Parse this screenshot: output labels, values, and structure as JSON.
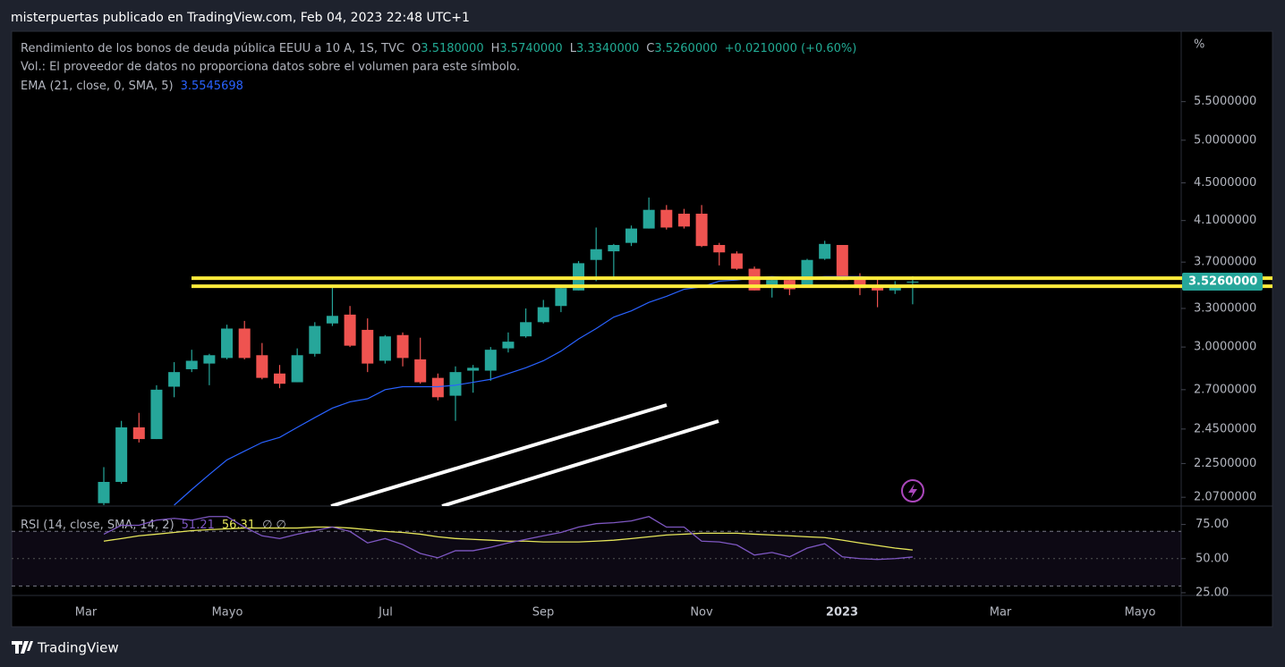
{
  "header": {
    "title": "misterpuertas publicado en TradingView.com, Feb 04, 2023 22:48 UTC+1"
  },
  "legend": {
    "symbol": "Rendimiento de los bonos de deuda pública EEUU a 10 A, 1S, TVC",
    "open_key": "O",
    "open": "3.5180000",
    "high_key": "H",
    "high": "3.5740000",
    "low_key": "L",
    "low": "3.3340000",
    "close_key": "C",
    "close": "3.5260000",
    "change": "+0.0210000 (+0.60%)",
    "volume_note": "Vol.: El proveedor de datos no proporciona datos sobre el volumen para este símbolo.",
    "ema_name": "EMA (21, close, 0, SMA, 5)",
    "ema_value": "3.5545698",
    "rsi_name": "RSI (14, close, SMA, 14, 2)",
    "rsi_value": "51.21",
    "rsi_sma_value": "56.31",
    "rsi_extra": "∅ ∅"
  },
  "chart_data": [
    {
      "type": "candlestick",
      "log_scale": true,
      "y_unit_label": "%",
      "ylim": [
        2.03,
        6.5
      ],
      "yticks": [
        {
          "value": 5.5,
          "label": "5.5000000"
        },
        {
          "value": 5.0,
          "label": "5.0000000"
        },
        {
          "value": 4.5,
          "label": "4.5000000"
        },
        {
          "value": 4.1,
          "label": "4.1000000"
        },
        {
          "value": 3.7,
          "label": "3.7000000"
        },
        {
          "value": 3.3,
          "label": "3.3000000"
        },
        {
          "value": 3.0,
          "label": "3.0000000"
        },
        {
          "value": 2.7,
          "label": "2.7000000"
        },
        {
          "value": 2.45,
          "label": "2.4500000"
        },
        {
          "value": 2.25,
          "label": "2.2500000"
        },
        {
          "value": 2.07,
          "label": "2.0700000"
        }
      ],
      "categories": [
        null,
        null,
        null,
        null,
        null,
        null,
        null,
        null,
        null,
        null,
        null,
        null,
        null,
        null,
        null,
        null,
        null,
        null,
        null,
        null,
        null,
        null,
        null,
        null,
        null,
        null,
        null,
        null,
        null,
        null,
        null,
        null,
        null,
        null,
        null,
        null,
        null,
        null,
        null,
        null,
        null,
        null,
        null,
        null,
        null,
        null,
        null
      ],
      "up_color": "#26a69a",
      "down_color": "#ef5350",
      "series": [
        {
          "open": [
            2.04,
            2.15,
            2.46,
            2.39,
            2.72,
            2.84,
            2.88,
            2.92,
            3.14,
            2.94,
            2.81,
            2.75,
            2.95,
            3.18,
            3.25,
            3.13,
            2.9,
            3.09,
            2.91,
            2.78,
            2.66,
            2.83,
            2.83,
            2.99,
            3.08,
            3.19,
            3.32,
            3.45,
            3.72,
            3.8,
            3.88,
            4.02,
            4.21,
            4.17,
            4.17,
            3.86,
            3.78,
            3.64,
            3.49,
            3.54,
            3.48,
            3.73,
            3.86,
            3.55,
            3.48,
            3.45,
            3.518
          ],
          "high": [
            2.23,
            2.5,
            2.55,
            2.73,
            2.89,
            2.98,
            2.95,
            3.17,
            3.2,
            3.03,
            2.87,
            2.99,
            3.19,
            3.5,
            3.32,
            3.22,
            3.09,
            3.11,
            3.07,
            2.81,
            2.86,
            2.87,
            3.0,
            3.11,
            3.3,
            3.37,
            3.49,
            3.71,
            4.03,
            3.87,
            4.05,
            4.34,
            4.26,
            4.22,
            4.26,
            3.88,
            3.8,
            3.66,
            3.56,
            3.57,
            3.73,
            3.9,
            3.86,
            3.6,
            3.55,
            3.53,
            3.574
          ],
          "low": [
            2.03,
            2.14,
            2.37,
            2.39,
            2.65,
            2.82,
            2.73,
            2.91,
            2.91,
            2.77,
            2.71,
            2.75,
            2.93,
            3.16,
            3.0,
            2.82,
            2.88,
            2.86,
            2.74,
            2.63,
            2.5,
            2.68,
            2.76,
            2.96,
            3.07,
            3.18,
            3.27,
            3.45,
            3.53,
            3.54,
            3.85,
            4.02,
            4.01,
            4.02,
            3.84,
            3.67,
            3.63,
            3.45,
            3.39,
            3.41,
            3.48,
            3.72,
            3.54,
            3.41,
            3.31,
            3.42,
            3.334
          ],
          "close": [
            2.15,
            2.46,
            2.39,
            2.7,
            2.82,
            2.9,
            2.94,
            3.14,
            2.92,
            2.78,
            2.74,
            2.94,
            3.16,
            3.24,
            3.01,
            2.88,
            3.08,
            2.92,
            2.75,
            2.65,
            2.82,
            2.85,
            2.98,
            3.04,
            3.19,
            3.31,
            3.47,
            3.69,
            3.82,
            3.86,
            4.02,
            4.21,
            4.03,
            4.04,
            3.85,
            3.79,
            3.64,
            3.45,
            3.54,
            3.46,
            3.72,
            3.87,
            3.54,
            3.47,
            3.45,
            3.49,
            3.526
          ]
        }
      ],
      "ema": {
        "color": "#2962ff",
        "values": [
          null,
          null,
          null,
          null,
          2.03,
          2.11,
          2.19,
          2.27,
          2.32,
          2.37,
          2.4,
          2.46,
          2.52,
          2.58,
          2.62,
          2.64,
          2.7,
          2.72,
          2.72,
          2.72,
          2.73,
          2.75,
          2.77,
          2.81,
          2.85,
          2.9,
          2.97,
          3.06,
          3.14,
          3.23,
          3.28,
          3.35,
          3.4,
          3.46,
          3.48,
          3.53,
          3.54,
          3.56,
          3.57,
          3.56,
          3.56,
          3.57,
          3.57,
          3.57,
          3.56,
          3.56,
          3.5545698
        ]
      },
      "levels": [
        3.556,
        3.486
      ],
      "level_color": "#ffeb3b",
      "last_price": {
        "value": 3.526,
        "label": "3.5260000"
      }
    },
    {
      "type": "line",
      "ylim": [
        23,
        88.5
      ],
      "yticks": [
        {
          "value": 75,
          "label": "75.00"
        },
        {
          "value": 50,
          "label": "50.00"
        },
        {
          "value": 25,
          "label": "25.00"
        }
      ],
      "band": [
        30,
        70
      ],
      "categories": [
        null,
        null,
        null,
        null,
        null,
        null,
        null,
        null,
        null,
        null,
        null,
        null,
        null,
        null,
        null,
        null,
        null,
        null,
        null,
        null,
        null,
        null,
        null,
        null,
        null,
        null,
        null,
        null,
        null,
        null,
        null,
        null,
        null,
        null,
        null,
        null,
        null,
        null,
        null,
        null,
        null,
        null,
        null,
        null,
        null,
        null,
        null
      ],
      "x_axis_labels": [
        "Mar",
        "Mayo",
        "Jul",
        "Sep",
        "Nov",
        "2023",
        "Mar",
        "Mayo"
      ],
      "series": [
        {
          "color": "#7e57c2",
          "values": [
            67.9,
            74.4,
            74.4,
            78.2,
            79.5,
            78.2,
            80.8,
            80.8,
            73.1,
            66.7,
            64.7,
            67.9,
            70.5,
            73.1,
            69.9,
            61.5,
            64.7,
            60.3,
            53.8,
            50.6,
            55.8,
            55.8,
            58.3,
            61.5,
            64.1,
            66.7,
            69.2,
            73.1,
            75.6,
            76.3,
            77.6,
            80.8,
            73.1,
            73.1,
            62.8,
            62.2,
            60.0,
            52.6,
            54.5,
            51.3,
            57.7,
            60.9,
            51.3,
            50.0,
            49.4,
            50.0,
            51.21
          ]
        },
        {
          "color": "#e6e65a",
          "values": [
            62.8,
            64.7,
            66.7,
            67.9,
            69.2,
            70.5,
            71.2,
            71.8,
            72.4,
            72.4,
            72.4,
            72.4,
            73.1,
            73.1,
            72.4,
            71.2,
            69.9,
            69.2,
            67.9,
            66.0,
            64.7,
            64.1,
            63.5,
            62.8,
            62.8,
            62.2,
            62.2,
            62.2,
            62.8,
            63.5,
            64.7,
            66.0,
            67.3,
            67.9,
            68.6,
            68.6,
            68.6,
            67.9,
            67.3,
            66.7,
            66.0,
            65.4,
            63.5,
            61.5,
            59.6,
            57.7,
            56.31
          ]
        }
      ]
    }
  ],
  "footer": {
    "brand": "TradingView"
  }
}
